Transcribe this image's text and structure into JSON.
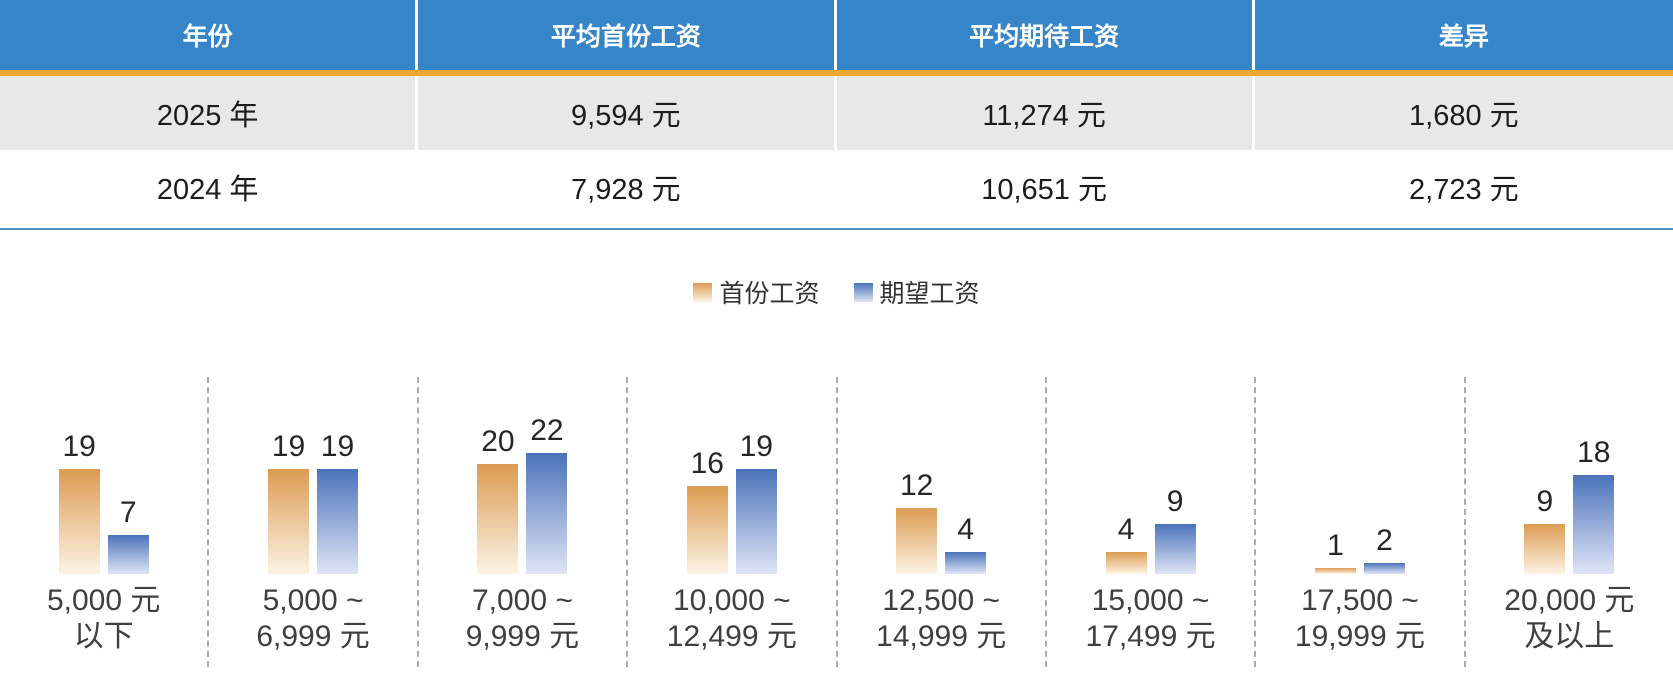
{
  "table": {
    "headers": [
      "年份",
      "平均首份工资",
      "平均期待工资",
      "差异"
    ],
    "rows": [
      [
        "2025 年",
        "9,594 元",
        "11,274 元",
        "1,680 元"
      ],
      [
        "2024 年",
        "7,928 元",
        "10,651 元",
        "2,723 元"
      ]
    ]
  },
  "chart_data": {
    "type": "bar",
    "grid": false,
    "legend_position": "top-center",
    "ylim": [
      0,
      22
    ],
    "categories": [
      "5,000 元以下",
      "5,000 ~ 6,999 元",
      "7,000 ~ 9,999 元",
      "10,000 ~ 12,499 元",
      "12,500 ~ 14,999 元",
      "15,000 ~ 17,499 元",
      "17,500 ~ 19,999 元",
      "20,000 元及以上"
    ],
    "category_lines": [
      [
        "5,000 元",
        "以下"
      ],
      [
        "5,000 ~",
        "6,999 元"
      ],
      [
        "7,000 ~",
        "9,999 元"
      ],
      [
        "10,000 ~",
        "12,499 元"
      ],
      [
        "12,500 ~",
        "14,999 元"
      ],
      [
        "15,000 ~",
        "17,499 元"
      ],
      [
        "17,500 ~",
        "19,999 元"
      ],
      [
        "20,000 元",
        "及以上"
      ]
    ],
    "series": [
      {
        "name": "首份工资",
        "values": [
          19,
          19,
          20,
          16,
          12,
          4,
          1,
          9
        ]
      },
      {
        "name": "期望工资",
        "values": [
          7,
          19,
          22,
          19,
          4,
          9,
          2,
          18
        ]
      }
    ]
  },
  "colors": {
    "header_bg": "#3685C9",
    "header_underline": "#F0A732",
    "alt_row_bg": "#E8E8E8",
    "table_bottom_border": "#4E94CC",
    "first_salary_gradient_top": "#DC9B52",
    "first_salary_gradient_bottom": "#FCF3E4",
    "expected_salary_gradient_top": "#4B73BA",
    "expected_salary_gradient_bottom": "#DFE5F6"
  }
}
